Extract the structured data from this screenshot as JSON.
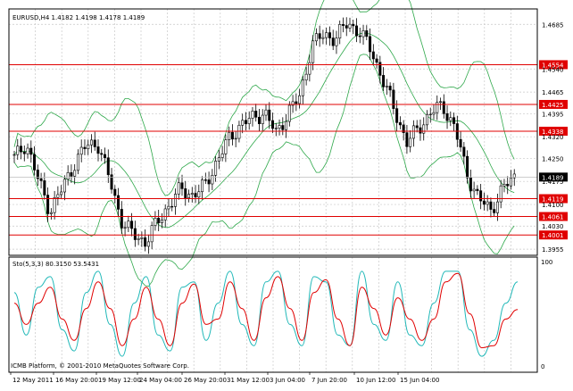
{
  "header": {
    "title": "EURUSD,H4  1.4182 1.4198 1.4178 1.4189"
  },
  "colors": {
    "background": "#ffffff",
    "grid": "#c8c8c8",
    "candle": "#000000",
    "bollinger": "#2ea84a",
    "hline": "#e00000",
    "stoch_main": "#20b8b8",
    "stoch_signal": "#e00000",
    "price_tag": "#000000",
    "level_tag": "#e00000"
  },
  "price_axis": {
    "ticks": [
      "1.4685",
      "1.4540",
      "1.4465",
      "1.4395",
      "1.4320",
      "1.4250",
      "1.4175",
      "1.4100",
      "1.4030",
      "1.3955"
    ]
  },
  "current_price": "1.4189",
  "horizontal_levels": [
    "1.4554",
    "1.4425",
    "1.4338",
    "1.4119",
    "1.4061",
    "1.4001"
  ],
  "time_axis": {
    "labels": [
      "12 May 2011",
      "16 May 20:00",
      "19 May 12:00",
      "24 May 04:00",
      "26 May 20:00",
      "31 May 12:00",
      "3 Jun 04:00",
      "7 Jun 20:00",
      "10 Jun 12:00",
      "15 Jun 04:00"
    ]
  },
  "indicator": {
    "title": "Sto(5,3,3) 80.3150 53.5431",
    "axis_labels": [
      "100",
      "0"
    ],
    "watermark": "ICMB Platform, © 2001-2010 MetaQuotes Software Corp."
  },
  "chart_data": [
    {
      "type": "candlestick",
      "title": "EURUSD,H4  1.4182 1.4198 1.4178 1.4189",
      "ylim": [
        1.3935,
        1.4735
      ],
      "approx_close_path": [
        1.425,
        1.43,
        1.418,
        1.408,
        1.415,
        1.423,
        1.429,
        1.43,
        1.418,
        1.405,
        1.4,
        1.398,
        1.404,
        1.41,
        1.415,
        1.413,
        1.416,
        1.424,
        1.431,
        1.436,
        1.438,
        1.44,
        1.433,
        1.44,
        1.445,
        1.462,
        1.465,
        1.464,
        1.469,
        1.466,
        1.46,
        1.45,
        1.44,
        1.43,
        1.435,
        1.44,
        1.442,
        1.435,
        1.42,
        1.412,
        1.408,
        1.415,
        1.4189
      ],
      "overlays": [
        "Bollinger Bands (upper, middle, lower)"
      ],
      "horizontal_levels": [
        1.4554,
        1.4425,
        1.4338,
        1.4119,
        1.4061,
        1.4001
      ],
      "current_price": 1.4189
    },
    {
      "type": "line",
      "title": "Sto(5,3,3) 80.3150 53.5431",
      "ylim": [
        0,
        100
      ],
      "series": [
        {
          "name": "main",
          "values": [
            70,
            30,
            75,
            85,
            35,
            15,
            70,
            90,
            40,
            10,
            60,
            85,
            30,
            15,
            75,
            80,
            25,
            60,
            90,
            40,
            20,
            80,
            90,
            40,
            20,
            85,
            80,
            30,
            20,
            90,
            40,
            25,
            80,
            30,
            20,
            60,
            90,
            90,
            35,
            10,
            25,
            60,
            80
          ]
        },
        {
          "name": "signal",
          "values": [
            60,
            40,
            60,
            75,
            45,
            25,
            55,
            80,
            55,
            20,
            45,
            75,
            45,
            20,
            60,
            78,
            40,
            45,
            80,
            55,
            25,
            65,
            85,
            55,
            25,
            70,
            82,
            45,
            20,
            75,
            55,
            30,
            65,
            45,
            25,
            45,
            80,
            88,
            50,
            18,
            20,
            45,
            54
          ]
        }
      ]
    }
  ]
}
